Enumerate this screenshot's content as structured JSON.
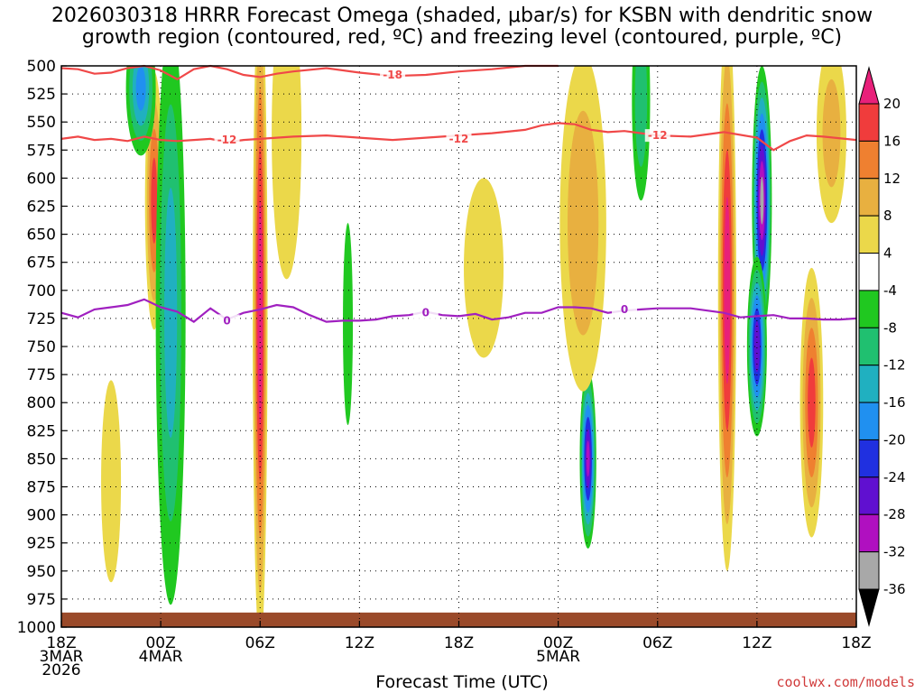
{
  "chart_data": {
    "type": "time-height",
    "title": "2026030318 HRRR Forecast Omega (shaded, μbar/s) for KSBN with dendritic snow\ngrowth region (contoured, red, ºC) and freezing level (contoured, purple, ºC)",
    "xlabel": "Forecast Time (UTC)",
    "ylabel": "",
    "credit": "coolwx.com/models",
    "y_ticks": [
      500,
      525,
      550,
      575,
      600,
      625,
      650,
      675,
      700,
      725,
      750,
      775,
      800,
      825,
      850,
      875,
      900,
      925,
      950,
      975,
      1000
    ],
    "ylim": [
      500,
      1000
    ],
    "xlim": [
      0,
      48
    ],
    "x_ticks": [
      {
        "hour": 0,
        "lines": [
          "18Z",
          "3MAR",
          "2026"
        ]
      },
      {
        "hour": 6,
        "lines": [
          "00Z",
          "4MAR"
        ]
      },
      {
        "hour": 12,
        "lines": [
          "06Z"
        ]
      },
      {
        "hour": 18,
        "lines": [
          "12Z"
        ]
      },
      {
        "hour": 24,
        "lines": [
          "18Z"
        ]
      },
      {
        "hour": 30,
        "lines": [
          "00Z",
          "5MAR"
        ]
      },
      {
        "hour": 36,
        "lines": [
          "06Z"
        ]
      },
      {
        "hour": 42,
        "lines": [
          "12Z"
        ]
      },
      {
        "hour": 48,
        "lines": [
          "18Z"
        ]
      }
    ],
    "colorbar": {
      "labels": [
        "20",
        "16",
        "12",
        "8",
        "4",
        "-4",
        "-8",
        "-12",
        "-16",
        "-20",
        "-24",
        "-28",
        "-32",
        "-36"
      ],
      "bins": [
        {
          "lo": 20,
          "hi": 24,
          "color": "#e8207a"
        },
        {
          "lo": 16,
          "hi": 20,
          "color": "#f03c3c"
        },
        {
          "lo": 12,
          "hi": 16,
          "color": "#ef8030"
        },
        {
          "lo": 8,
          "hi": 12,
          "color": "#e8b040"
        },
        {
          "lo": 4,
          "hi": 8,
          "color": "#ebd84a"
        },
        {
          "lo": -4,
          "hi": 4,
          "color": "#ffffff"
        },
        {
          "lo": -8,
          "hi": -4,
          "color": "#20c820"
        },
        {
          "lo": -12,
          "hi": -8,
          "color": "#20c070"
        },
        {
          "lo": -16,
          "hi": -12,
          "color": "#20b0c0"
        },
        {
          "lo": -20,
          "hi": -16,
          "color": "#2090f0"
        },
        {
          "lo": -24,
          "hi": -20,
          "color": "#2030e0"
        },
        {
          "lo": -28,
          "hi": -24,
          "color": "#6010d0"
        },
        {
          "lo": -32,
          "hi": -28,
          "color": "#b010c0"
        },
        {
          "lo": -36,
          "hi": -32,
          "color": "#a8a8a8"
        },
        {
          "lo": -40,
          "hi": -36,
          "color": "#000000"
        }
      ]
    },
    "contours": [
      {
        "name": "-18 isotherm",
        "label": "-18",
        "color": "#f04848",
        "points": [
          [
            0,
            502
          ],
          [
            1,
            503
          ],
          [
            2,
            507
          ],
          [
            3,
            506
          ],
          [
            4,
            502
          ],
          [
            5,
            500
          ],
          [
            6,
            504
          ],
          [
            7,
            512
          ],
          [
            8,
            503
          ],
          [
            9,
            500
          ],
          [
            10,
            503
          ],
          [
            11,
            508
          ],
          [
            12,
            510
          ],
          [
            13,
            507
          ],
          [
            14,
            505
          ],
          [
            16,
            502
          ],
          [
            18,
            506
          ],
          [
            20,
            509
          ],
          [
            22,
            508
          ],
          [
            24,
            505
          ],
          [
            26,
            503
          ],
          [
            28,
            500
          ],
          [
            30,
            500
          ]
        ],
        "label_points": [
          [
            20,
            508
          ]
        ]
      },
      {
        "name": "-12 isotherm",
        "label": "-12",
        "color": "#f04848",
        "points": [
          [
            0,
            565
          ],
          [
            1,
            563
          ],
          [
            2,
            566
          ],
          [
            3,
            565
          ],
          [
            4,
            567
          ],
          [
            5,
            563
          ],
          [
            6,
            566
          ],
          [
            7,
            567
          ],
          [
            8,
            566
          ],
          [
            9,
            565
          ],
          [
            10,
            568
          ],
          [
            11,
            566
          ],
          [
            12,
            565
          ],
          [
            14,
            563
          ],
          [
            16,
            562
          ],
          [
            18,
            564
          ],
          [
            20,
            566
          ],
          [
            22,
            564
          ],
          [
            24,
            562
          ],
          [
            26,
            560
          ],
          [
            28,
            557
          ],
          [
            29,
            553
          ],
          [
            30,
            551
          ],
          [
            31,
            552
          ],
          [
            32,
            557
          ],
          [
            33,
            559
          ],
          [
            34,
            558
          ],
          [
            35,
            560
          ],
          [
            36,
            562
          ],
          [
            38,
            563
          ],
          [
            40,
            559
          ],
          [
            42,
            564
          ],
          [
            43,
            575
          ],
          [
            44,
            567
          ],
          [
            45,
            562
          ],
          [
            46,
            563
          ],
          [
            48,
            566
          ]
        ],
        "label_points": [
          [
            10,
            566
          ],
          [
            24,
            565
          ],
          [
            36,
            562
          ]
        ]
      },
      {
        "name": "freezing level",
        "label": "0",
        "color": "#a020c0",
        "points": [
          [
            0,
            720
          ],
          [
            1,
            724
          ],
          [
            2,
            717
          ],
          [
            3,
            715
          ],
          [
            4,
            713
          ],
          [
            5,
            708
          ],
          [
            6,
            715
          ],
          [
            7,
            719
          ],
          [
            8,
            728
          ],
          [
            9,
            716
          ],
          [
            10,
            726
          ],
          [
            11,
            720
          ],
          [
            12,
            717
          ],
          [
            13,
            713
          ],
          [
            14,
            715
          ],
          [
            15,
            722
          ],
          [
            16,
            728
          ],
          [
            17,
            727
          ],
          [
            18,
            727
          ],
          [
            19,
            726
          ],
          [
            20,
            723
          ],
          [
            21,
            722
          ],
          [
            22,
            719
          ],
          [
            23,
            722
          ],
          [
            24,
            723
          ],
          [
            25,
            721
          ],
          [
            26,
            726
          ],
          [
            27,
            724
          ],
          [
            28,
            720
          ],
          [
            29,
            720
          ],
          [
            30,
            715
          ],
          [
            31,
            715
          ],
          [
            32,
            716
          ],
          [
            33,
            720
          ],
          [
            34,
            718
          ],
          [
            35,
            717
          ],
          [
            36,
            716
          ],
          [
            37,
            716
          ],
          [
            38,
            716
          ],
          [
            39,
            718
          ],
          [
            40,
            720
          ],
          [
            41,
            724
          ],
          [
            42,
            723
          ],
          [
            43,
            722
          ],
          [
            44,
            725
          ],
          [
            45,
            725
          ],
          [
            46,
            726
          ],
          [
            47,
            726
          ],
          [
            48,
            725
          ]
        ],
        "label_points": [
          [
            10,
            727
          ],
          [
            22,
            720
          ],
          [
            34,
            717
          ]
        ]
      }
    ],
    "omega_features": [
      {
        "hour": 5.6,
        "plev": 620,
        "hw": 0.55,
        "hp": 115,
        "value": 16
      },
      {
        "hour": 4.8,
        "plev": 520,
        "hw": 0.9,
        "hp": 60,
        "value": -16
      },
      {
        "hour": 6.6,
        "plev": 720,
        "hw": 0.9,
        "hp": 260,
        "value": -12
      },
      {
        "hour": 12.0,
        "plev": 720,
        "hw": 0.45,
        "hp": 300,
        "value": 22
      },
      {
        "hour": 13.6,
        "plev": 560,
        "hw": 0.9,
        "hp": 130,
        "value": 6
      },
      {
        "hour": 17.3,
        "plev": 730,
        "hw": 0.3,
        "hp": 90,
        "value": -6
      },
      {
        "hour": 3.0,
        "plev": 870,
        "hw": 0.6,
        "hp": 90,
        "value": 6
      },
      {
        "hour": 25.5,
        "plev": 680,
        "hw": 1.2,
        "hp": 80,
        "value": 6
      },
      {
        "hour": 31.8,
        "plev": 850,
        "hw": 0.5,
        "hp": 80,
        "value": -28
      },
      {
        "hour": 31.5,
        "plev": 640,
        "hw": 1.4,
        "hp": 150,
        "value": 10
      },
      {
        "hour": 35.0,
        "plev": 530,
        "hw": 0.55,
        "hp": 90,
        "value": -10
      },
      {
        "hour": 40.2,
        "plev": 700,
        "hw": 0.55,
        "hp": 250,
        "value": 22
      },
      {
        "hour": 42.3,
        "plev": 620,
        "hw": 0.6,
        "hp": 120,
        "value": -32
      },
      {
        "hour": 42.0,
        "plev": 750,
        "hw": 0.6,
        "hp": 80,
        "value": -26
      },
      {
        "hour": 45.3,
        "plev": 800,
        "hw": 0.7,
        "hp": 120,
        "value": 16
      },
      {
        "hour": 46.5,
        "plev": 560,
        "hw": 0.9,
        "hp": 80,
        "value": 8
      }
    ],
    "ground": {
      "color": "#9a4a2a",
      "top_plev": 987
    }
  }
}
